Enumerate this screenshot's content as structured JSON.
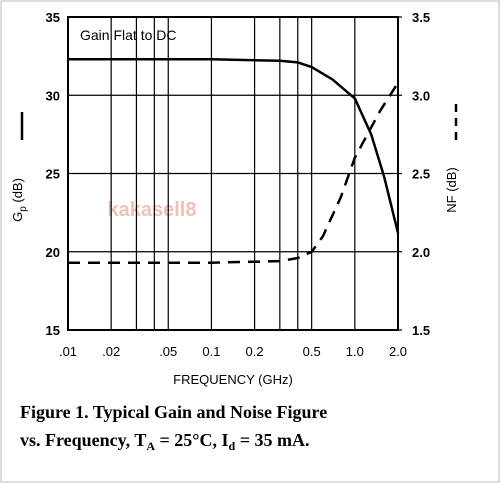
{
  "chart_data": {
    "type": "line",
    "annotation": "Gain Flat to DC",
    "watermark": "kakasell8",
    "xlabel": "FREQUENCY (GHz)",
    "ylabel": [
      "G",
      "p",
      " (dB)"
    ],
    "y2label": "NF (dB)",
    "log_x": true,
    "grid": true,
    "xlim": [
      0.01,
      2.0
    ],
    "xticks": [
      {
        "value": 0.01,
        "label": ".01"
      },
      {
        "value": 0.02,
        "label": ".02"
      },
      {
        "value": 0.05,
        "label": ".05"
      },
      0.1,
      0.2,
      0.5,
      {
        "value": 1.0,
        "label": "1.0"
      },
      {
        "value": 2.0,
        "label": "2.0"
      }
    ],
    "xminorticks": [
      0.03,
      0.04,
      0.3,
      0.4
    ],
    "ylim": [
      15,
      35
    ],
    "yticks": [
      15,
      20,
      25,
      30,
      35
    ],
    "y2lim": [
      1.5,
      3.5
    ],
    "y2ticks": [
      1.5,
      {
        "value": 2.0,
        "label": "2.0"
      },
      2.5,
      {
        "value": 3.0,
        "label": "3.0"
      },
      3.5
    ],
    "series": [
      {
        "color": "#000000",
        "dash": false,
        "x": [
          0.01,
          0.1,
          0.3,
          0.4,
          0.5,
          0.7,
          1.0,
          1.3,
          1.6,
          2.0
        ],
        "values": [
          32.3,
          32.3,
          32.2,
          32.1,
          31.8,
          31.0,
          29.8,
          27.5,
          24.8,
          21.2
        ]
      },
      {
        "color": "#000000",
        "dash": true,
        "axis": "y2",
        "x": [
          0.01,
          0.1,
          0.3,
          0.4,
          0.5,
          0.6,
          0.8,
          1.0,
          1.5,
          2.0
        ],
        "values": [
          1.93,
          1.93,
          1.94,
          1.96,
          2.0,
          2.1,
          2.35,
          2.6,
          2.9,
          3.08
        ]
      }
    ],
    "caption": [
      "Figure 1.  Typical Gain and Noise Figure",
      "vs. Frequency, T",
      "A",
      " = 25°C, I",
      "d",
      " = 35 mA."
    ]
  }
}
